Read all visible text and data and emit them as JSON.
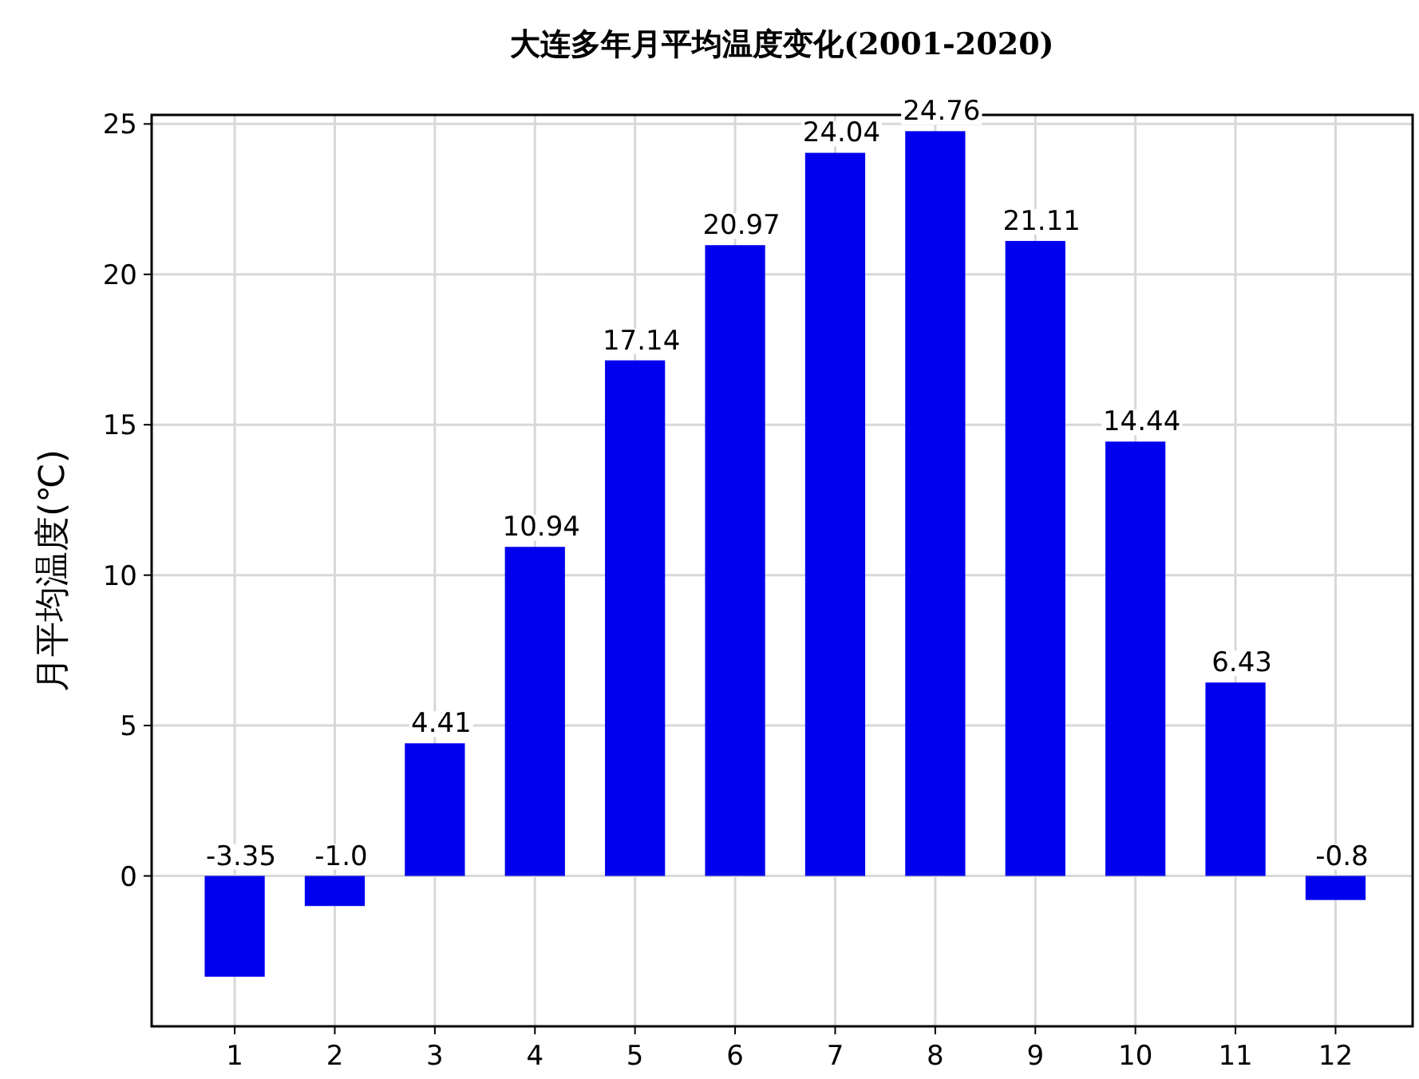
{
  "chart_data": {
    "type": "bar",
    "title": "大连多年月平均温度变化(2001-2020)",
    "ylabel": "月平均温度(℃)",
    "categories": [
      "1",
      "2",
      "3",
      "4",
      "5",
      "6",
      "7",
      "8",
      "9",
      "10",
      "11",
      "12"
    ],
    "values": [
      -3.35,
      -1.0,
      4.41,
      10.94,
      17.14,
      20.97,
      24.04,
      24.76,
      21.11,
      14.44,
      6.43,
      -0.8
    ],
    "value_labels": [
      "-3.35",
      "-1.0",
      "4.41",
      "10.94",
      "17.14",
      "20.97",
      "24.04",
      "24.76",
      "21.11",
      "14.44",
      "6.43",
      "-0.8"
    ],
    "color": "#0000ee",
    "ylim": [
      -5,
      25.3
    ],
    "yticks": [
      0,
      5,
      10,
      15,
      20,
      25
    ],
    "grid": true
  }
}
